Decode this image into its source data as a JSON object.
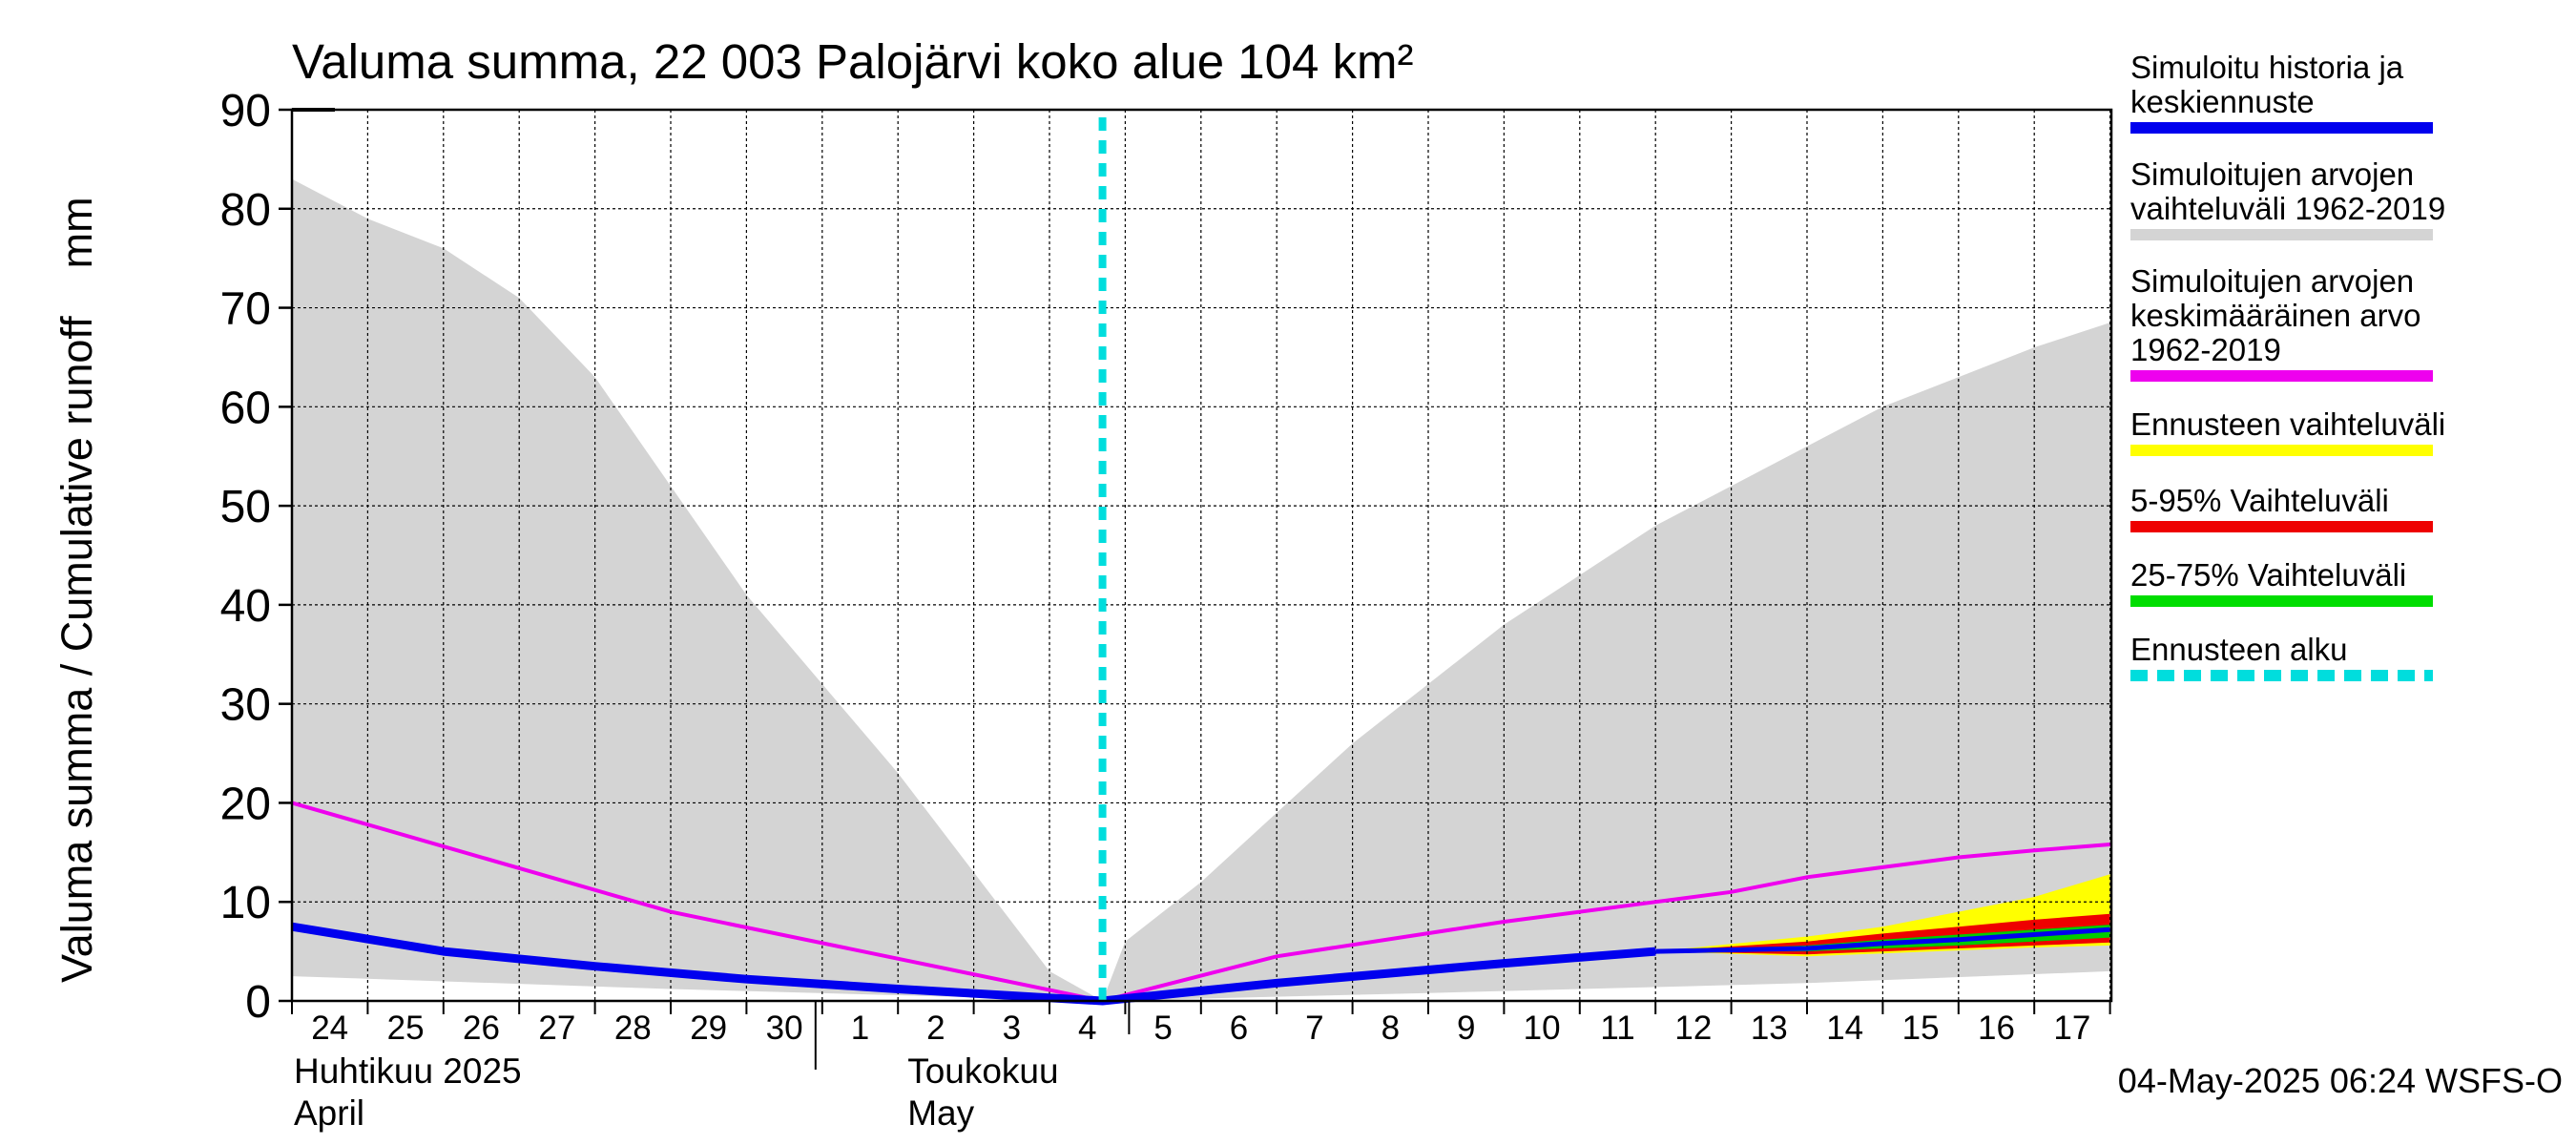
{
  "chart_data": {
    "type": "area",
    "title": "Valuma summa, 22 003 Palojärvi koko alue 104 km²",
    "ylabel": "Valuma summa / Cumulative runoff    mm",
    "ylim": [
      0,
      90
    ],
    "yticks": [
      0,
      10,
      20,
      30,
      40,
      50,
      60,
      70,
      80,
      90
    ],
    "x_days": [
      "24",
      "25",
      "26",
      "27",
      "28",
      "29",
      "30",
      "1",
      "2",
      "3",
      "4",
      "5",
      "6",
      "7",
      "8",
      "9",
      "10",
      "11",
      "12",
      "13",
      "14",
      "15",
      "16",
      "17"
    ],
    "month_labels": [
      {
        "line1": "Huhtikuu  2025",
        "line2": "April"
      },
      {
        "line1": "Toukokuu",
        "line2": "May"
      }
    ],
    "forecast_start_day": 10.7,
    "footer": "04-May-2025 06:24 WSFS-O",
    "legend": [
      {
        "key": "sim",
        "label_lines": [
          "Simuloitu historia ja",
          "keskiennuste"
        ],
        "color": "#0000ee",
        "style": "line"
      },
      {
        "key": "range",
        "label_lines": [
          "Simuloitujen arvojen",
          "vaihteluväli 1962-2019"
        ],
        "color": "#d4d4d4",
        "style": "line"
      },
      {
        "key": "mean",
        "label_lines": [
          "Simuloitujen arvojen",
          "keskimääräinen arvo",
          "   1962-2019"
        ],
        "color": "#ee00ee",
        "style": "line"
      },
      {
        "key": "ens",
        "label_lines": [
          "Ennusteen vaihteluväli"
        ],
        "color": "#ffff00",
        "style": "line"
      },
      {
        "key": "p595",
        "label_lines": [
          "5-95% Vaihteluväli"
        ],
        "color": "#ee0000",
        "style": "line"
      },
      {
        "key": "p2575",
        "label_lines": [
          "25-75% Vaihteluväli"
        ],
        "color": "#00dd00",
        "style": "line"
      },
      {
        "key": "start",
        "label_lines": [
          "Ennusteen alku"
        ],
        "color": "#00dddd",
        "style": "dashed"
      }
    ],
    "series": {
      "range_upper": {
        "x": [
          0,
          1,
          2,
          3,
          4,
          5,
          6,
          7,
          8,
          9,
          10,
          10.7,
          11,
          12,
          13,
          14,
          15,
          16,
          17,
          18,
          19,
          20,
          21,
          22,
          23,
          24
        ],
        "values": [
          83,
          79,
          76,
          71,
          63,
          52,
          41,
          32,
          23,
          13,
          3,
          0,
          6,
          12,
          19,
          26,
          32,
          38,
          43,
          48,
          52,
          56,
          60,
          63,
          66,
          68.5
        ]
      },
      "range_lower": {
        "x": [
          0,
          5,
          10.7,
          15,
          20,
          24
        ],
        "values": [
          2.5,
          1.2,
          0,
          0.8,
          1.8,
          3
        ]
      },
      "mean": {
        "x": [
          0,
          5,
          10.7,
          13,
          16,
          19,
          20,
          21,
          22,
          23,
          24
        ],
        "values": [
          20,
          9,
          0,
          4.5,
          8,
          11,
          12.5,
          13.5,
          14.5,
          15.2,
          15.8
        ]
      },
      "sim": {
        "x": [
          0,
          2,
          4,
          6,
          8,
          10.7,
          13,
          16,
          18
        ],
        "values": [
          7.5,
          5,
          3.5,
          2.2,
          1.2,
          0,
          1.8,
          3.8,
          5
        ]
      },
      "ens_upper": {
        "x": [
          18,
          20,
          21,
          22,
          23,
          24
        ],
        "values": [
          5,
          6.5,
          7.5,
          9,
          10.5,
          12.8
        ]
      },
      "ens_lower": {
        "x": [
          18,
          20,
          21,
          22,
          23,
          24
        ],
        "values": [
          5,
          4.5,
          4.8,
          5.1,
          5.4,
          5.6
        ]
      },
      "p95_upper": {
        "x": [
          18,
          20,
          21,
          22,
          23,
          24
        ],
        "values": [
          5,
          6,
          6.8,
          7.5,
          8.2,
          8.8
        ]
      },
      "p95_lower": {
        "x": [
          18,
          20,
          21,
          22,
          23,
          24
        ],
        "values": [
          5,
          4.7,
          5,
          5.3,
          5.6,
          5.9
        ]
      },
      "p75_upper": {
        "x": [
          18,
          20,
          21,
          22,
          23,
          24
        ],
        "values": [
          5,
          5.6,
          6.2,
          6.7,
          7.2,
          7.7
        ]
      },
      "p75_lower": {
        "x": [
          18,
          20,
          21,
          22,
          23,
          24
        ],
        "values": [
          5,
          5,
          5.3,
          5.6,
          6,
          6.4
        ]
      },
      "sim_forecast": {
        "x": [
          18,
          20,
          21,
          22,
          23,
          24
        ],
        "values": [
          5,
          5.3,
          5.8,
          6.2,
          6.7,
          7.2
        ]
      }
    }
  }
}
